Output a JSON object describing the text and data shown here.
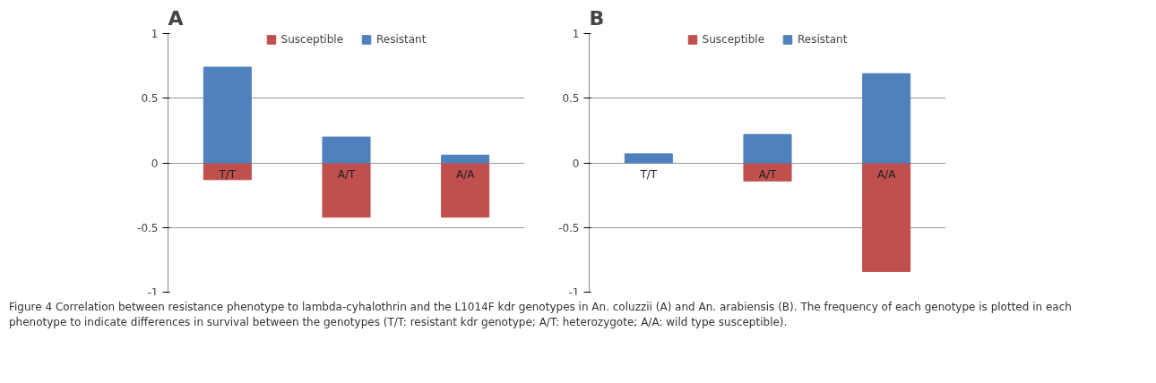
{
  "chart_data": [
    {
      "type": "bar",
      "title": "A",
      "stacked": true,
      "categories": [
        "T/T",
        "A/T",
        "A/A"
      ],
      "series": [
        {
          "name": "Susceptible",
          "color": "#c0504d",
          "values": [
            -0.13,
            -0.42,
            -0.42
          ]
        },
        {
          "name": "Resistant",
          "color": "#4f81bd",
          "values": [
            0.74,
            0.2,
            0.06
          ]
        }
      ],
      "ylim": [
        -1,
        1
      ],
      "yticks": [
        -1,
        -0.5,
        0,
        0.5,
        1
      ],
      "grid": "y",
      "legend": "top"
    },
    {
      "type": "bar",
      "title": "B",
      "stacked": true,
      "categories": [
        "T/T",
        "A/T",
        "A/A"
      ],
      "series": [
        {
          "name": "Susceptible",
          "color": "#c0504d",
          "values": [
            null,
            -0.14,
            -0.84
          ]
        },
        {
          "name": "Resistant",
          "color": "#4f81bd",
          "values": [
            0.07,
            0.22,
            0.69
          ]
        }
      ],
      "ylim": [
        -1,
        1
      ],
      "yticks": [
        -1,
        -0.5,
        0,
        0.5,
        1
      ],
      "grid": "y",
      "legend": "top",
      "annotations": [
        "Figure 4 Correlation between resistance phenotype to lambda-cyhalothrin and the L1014F kdr genotypes in An. coluzzii (A) and An. arabiensis (B). The frequency of each genotype is plotted in each phenotype to indicate differences in survival between the genotypes (T/T: resistant kdr genotype; A/T: heterozygote; A/A: wild type susceptible)."
      ]
    }
  ]
}
